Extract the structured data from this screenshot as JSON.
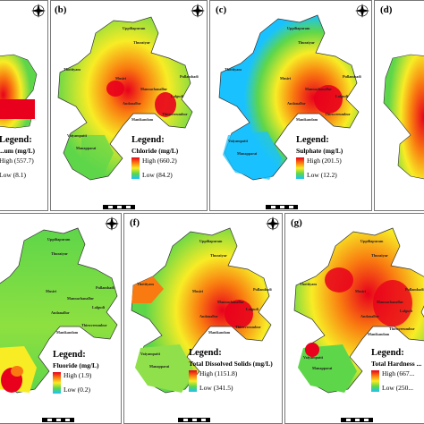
{
  "panels": [
    {
      "id": "a",
      "label": "",
      "legend_title": "Legend:",
      "param": "...um (mg/L)",
      "high_label": "High",
      "high": "(557.7)",
      "low_label": "Low",
      "low": "(8.1)"
    },
    {
      "id": "b",
      "label": "(b)",
      "legend_title": "Legend:",
      "param": "Chloride (mg/L)",
      "high_label": "High",
      "high": "(660.2)",
      "low_label": "Low",
      "low": "(84.2)"
    },
    {
      "id": "c",
      "label": "(c)",
      "legend_title": "Legend:",
      "param": "Sulphate (mg/L)",
      "high_label": "High",
      "high": "(201.5)",
      "low_label": "Low",
      "low": "(12.2)"
    },
    {
      "id": "d",
      "label": "(d)",
      "legend_title": "",
      "param": "",
      "high_label": "",
      "high": "",
      "low_label": "",
      "low": ""
    },
    {
      "id": "e",
      "label": "",
      "legend_title": "Legend:",
      "param": "Fluoride (mg/L)",
      "high_label": "High",
      "high": "(1.9)",
      "low_label": "Low",
      "low": "(0.2)"
    },
    {
      "id": "f",
      "label": "(f)",
      "legend_title": "Legend:",
      "param": "Total Dissolved Solids (mg/L)",
      "high_label": "High",
      "high": "(1151.8)",
      "low_label": "Low",
      "low": "(341.5)"
    },
    {
      "id": "g",
      "label": "(g)",
      "legend_title": "Legend:",
      "param": "Total Hardness ...",
      "high_label": "High",
      "high": "(667...",
      "low_label": "Low",
      "low": "(250..."
    }
  ],
  "places": {
    "uppiliapuram": "Uppiliapuram",
    "thuraiyur": "Thuraiyur",
    "thottiyam": "Thottiyam",
    "musiri": "Musiri",
    "pullambadi": "Pullambadi",
    "mannachanallur": "Mannachanallur",
    "lalgudi": "Lalgudi",
    "andanallur": "Andanallur",
    "thiruverumbur": "Thiruverumbur",
    "manikandam": "Manikandam",
    "vaiyampatti": "Vaiyampatti",
    "manapparai": "Manapparai",
    "marungapuri": "Marungapuri"
  },
  "colors": {
    "high": "#e8001c",
    "mid_high": "#f97a10",
    "mid": "#f8ec25",
    "mid_low": "#5ed64a",
    "low": "#19c2ff"
  },
  "icons": {
    "compass": "north-arrow-icon"
  }
}
